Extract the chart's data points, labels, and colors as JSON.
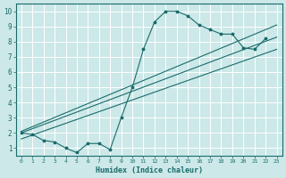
{
  "title": "",
  "xlabel": "Humidex (Indice chaleur)",
  "ylabel": "",
  "bg_color": "#cce8e8",
  "grid_color": "#ffffff",
  "line_color": "#1a6b6b",
  "xlim": [
    -0.5,
    23.5
  ],
  "ylim": [
    0.5,
    10.5
  ],
  "xticks": [
    0,
    1,
    2,
    3,
    4,
    5,
    6,
    7,
    8,
    9,
    10,
    11,
    12,
    13,
    14,
    15,
    16,
    17,
    18,
    19,
    20,
    21,
    22,
    23
  ],
  "yticks": [
    1,
    2,
    3,
    4,
    5,
    6,
    7,
    8,
    9,
    10
  ],
  "zigzag_x": [
    0,
    1,
    2,
    3,
    4,
    5,
    6,
    7,
    8,
    9,
    10,
    11,
    12,
    13,
    14,
    15,
    16,
    17,
    18,
    19,
    20,
    21,
    22
  ],
  "zigzag_y": [
    2.0,
    1.9,
    1.5,
    1.4,
    1.0,
    0.7,
    1.3,
    1.3,
    0.9,
    3.0,
    5.0,
    7.5,
    9.3,
    10.0,
    10.0,
    9.7,
    9.1,
    8.8,
    8.5,
    8.5,
    7.6,
    7.5,
    8.2
  ],
  "line1_x": [
    0,
    23
  ],
  "line1_y": [
    2.0,
    8.3
  ],
  "line2_x": [
    0,
    23
  ],
  "line2_y": [
    1.6,
    7.5
  ],
  "line3_x": [
    0,
    23
  ],
  "line3_y": [
    2.1,
    9.1
  ]
}
